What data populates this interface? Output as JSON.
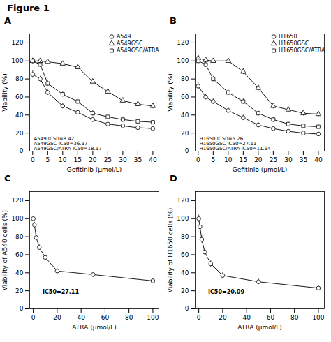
{
  "title": "Figure 1",
  "chart_data": [
    {
      "type": "line",
      "title": "A",
      "x_label": "Gefitinib (μmol/L)",
      "y_label": "Viability (%)",
      "x": [
        0,
        2.5,
        5,
        10,
        15,
        20,
        25,
        30,
        35,
        40
      ],
      "series": [
        {
          "name": "A549",
          "color": "#1a1a1a",
          "marker": "circle",
          "line_style": "solid",
          "values": [
            85,
            80,
            65,
            50,
            43,
            35,
            30,
            28,
            26,
            25
          ],
          "errors": [
            4,
            3,
            3,
            3,
            3,
            3,
            2,
            2,
            2,
            2
          ]
        },
        {
          "name": "A549GSC",
          "color": "#1a1a1a",
          "marker": "triangle",
          "line_style": "solid",
          "values": [
            100,
            100,
            99,
            97,
            93,
            77,
            66,
            56,
            52,
            50
          ],
          "errors": [
            3,
            2,
            2,
            2,
            3,
            3,
            3,
            3,
            3,
            3
          ]
        },
        {
          "name": "A549GSC/ATRA",
          "color": "#1a1a1a",
          "marker": "square",
          "line_style": "solid",
          "values": [
            100,
            96,
            75,
            63,
            55,
            42,
            38,
            35,
            33,
            32
          ],
          "errors": [
            3,
            3,
            3,
            3,
            3,
            3,
            3,
            3,
            2,
            2
          ]
        }
      ],
      "xlim": [
        -1,
        42
      ],
      "xticks": [
        0,
        5,
        10,
        15,
        20,
        25,
        30,
        35,
        40
      ],
      "ylim": [
        0,
        130
      ],
      "yticks": [
        0,
        20,
        40,
        60,
        80,
        100,
        120
      ],
      "grid": false,
      "legend": "upper right",
      "annotation": "A549 IC50=8.42\nA549GSC IC50=36.97\nA549GSC/ATRA IC50=18.17"
    },
    {
      "type": "line",
      "title": "B",
      "x_label": "Gefitinib (μmol/L)",
      "y_label": "Viability (%)",
      "x": [
        0,
        2.5,
        5,
        10,
        15,
        20,
        25,
        30,
        35,
        40
      ],
      "series": [
        {
          "name": "H1650",
          "color": "#1a1a1a",
          "marker": "circle",
          "line_style": "solid",
          "values": [
            72,
            60,
            55,
            45,
            37,
            29,
            25,
            22,
            20,
            19
          ],
          "errors": [
            4,
            3,
            3,
            3,
            3,
            3,
            2,
            2,
            2,
            2
          ]
        },
        {
          "name": "H1650GSC",
          "color": "#1a1a1a",
          "marker": "triangle",
          "line_style": "solid",
          "values": [
            103,
            101,
            100,
            100,
            88,
            70,
            50,
            46,
            42,
            41
          ],
          "errors": [
            3,
            2,
            2,
            2,
            3,
            3,
            3,
            3,
            3,
            3
          ]
        },
        {
          "name": "H1650GSC/ATRA",
          "color": "#1a1a1a",
          "marker": "square",
          "line_style": "solid",
          "values": [
            100,
            96,
            80,
            65,
            55,
            42,
            35,
            30,
            28,
            27
          ],
          "errors": [
            3,
            3,
            3,
            3,
            3,
            3,
            3,
            3,
            2,
            2
          ]
        }
      ],
      "xlim": [
        -1,
        42
      ],
      "xticks": [
        0,
        5,
        10,
        15,
        20,
        25,
        30,
        35,
        40
      ],
      "ylim": [
        0,
        130
      ],
      "yticks": [
        0,
        20,
        40,
        60,
        80,
        100,
        120
      ],
      "grid": false,
      "legend": "upper right",
      "annotation": "H1650 IC50=5.26\nH1650GSC IC50=27.11\nH1650GSC/ATRA IC50=11.94"
    },
    {
      "type": "line",
      "title": "C",
      "x_label": "ATRA (μmol/L)",
      "y_label": "Viability of A540 cells (%)",
      "x": [
        0,
        1,
        2.5,
        5,
        10,
        20,
        50,
        100
      ],
      "series": [
        {
          "color": "#1a1a1a",
          "marker": "circle",
          "line_style": "solid",
          "values": [
            100,
            93,
            79,
            68,
            57,
            42,
            38,
            31
          ],
          "errors": [
            3,
            3,
            3,
            3,
            3,
            3,
            3,
            3
          ]
        }
      ],
      "xlim": [
        -3,
        105
      ],
      "xticks": [
        0,
        20,
        40,
        60,
        80,
        100
      ],
      "ylim": [
        0,
        130
      ],
      "yticks": [
        0,
        20,
        40,
        60,
        80,
        100,
        120
      ],
      "grid": false,
      "annotation": "IC50=27.11"
    },
    {
      "type": "line",
      "title": "D",
      "x_label": "ATRA (μmol/L)",
      "y_label": "Viability of H1650 cells (%)",
      "x": [
        0,
        1,
        2.5,
        5,
        10,
        20,
        50,
        100
      ],
      "series": [
        {
          "color": "#1a1a1a",
          "marker": "circle",
          "line_style": "solid",
          "values": [
            100,
            91,
            77,
            63,
            50,
            37,
            30,
            23
          ],
          "errors": [
            4,
            4,
            4,
            4,
            4,
            4,
            3,
            3
          ]
        }
      ],
      "xlim": [
        -3,
        105
      ],
      "xticks": [
        0,
        20,
        40,
        60,
        80,
        100
      ],
      "ylim": [
        0,
        130
      ],
      "yticks": [
        0,
        20,
        40,
        60,
        80,
        100,
        120
      ],
      "grid": false,
      "annotation": "IC50=20.09"
    }
  ]
}
